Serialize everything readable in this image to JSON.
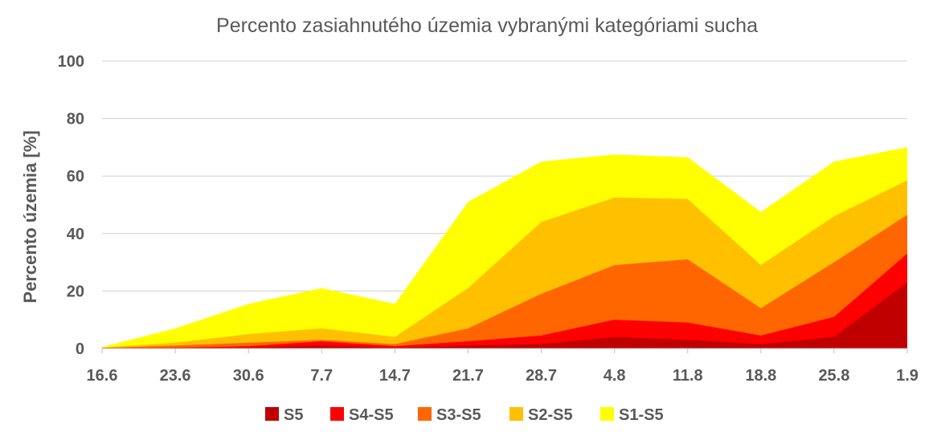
{
  "chart_data": {
    "type": "area",
    "title": "Percento zasiahnutého územia vybranými kategóriami sucha",
    "xlabel": "",
    "ylabel": "Percento územia  [%]",
    "ylim": [
      0,
      100
    ],
    "yticks": [
      "0",
      "20",
      "40",
      "60",
      "80",
      "100"
    ],
    "categories": [
      "16.6",
      "23.6",
      "30.6",
      "7.7",
      "14.7",
      "21.7",
      "28.7",
      "4.8",
      "11.8",
      "18.8",
      "25.8",
      "1.9"
    ],
    "grid": true,
    "legend_position": "bottom",
    "series": [
      {
        "name": "S1-S5",
        "color": "#FFFF00",
        "values": [
          0.5,
          7,
          15.5,
          21,
          15.5,
          51,
          65,
          67.5,
          66.5,
          47.5,
          65,
          70
        ]
      },
      {
        "name": "S2-S5",
        "color": "#FFC000",
        "values": [
          0.3,
          2,
          5,
          7,
          4,
          21,
          44,
          52.5,
          52,
          29,
          46,
          58.5
        ]
      },
      {
        "name": "S3-S5",
        "color": "#FF6600",
        "values": [
          0.2,
          1,
          2,
          3,
          1.5,
          7,
          19,
          29,
          31,
          14,
          30,
          46.5
        ]
      },
      {
        "name": "S4-S5",
        "color": "#FF0000",
        "values": [
          0.1,
          0.3,
          0.8,
          2.5,
          0.8,
          2.5,
          4.5,
          10,
          9,
          4.5,
          11,
          33
        ]
      },
      {
        "name": "S5",
        "color": "#C00000",
        "values": [
          0,
          0.1,
          0.3,
          1,
          0.3,
          1,
          1.5,
          4,
          3,
          1.5,
          4,
          23
        ]
      }
    ],
    "legend_order": [
      "S5",
      "S4-S5",
      "S3-S5",
      "S2-S5",
      "S1-S5"
    ]
  }
}
